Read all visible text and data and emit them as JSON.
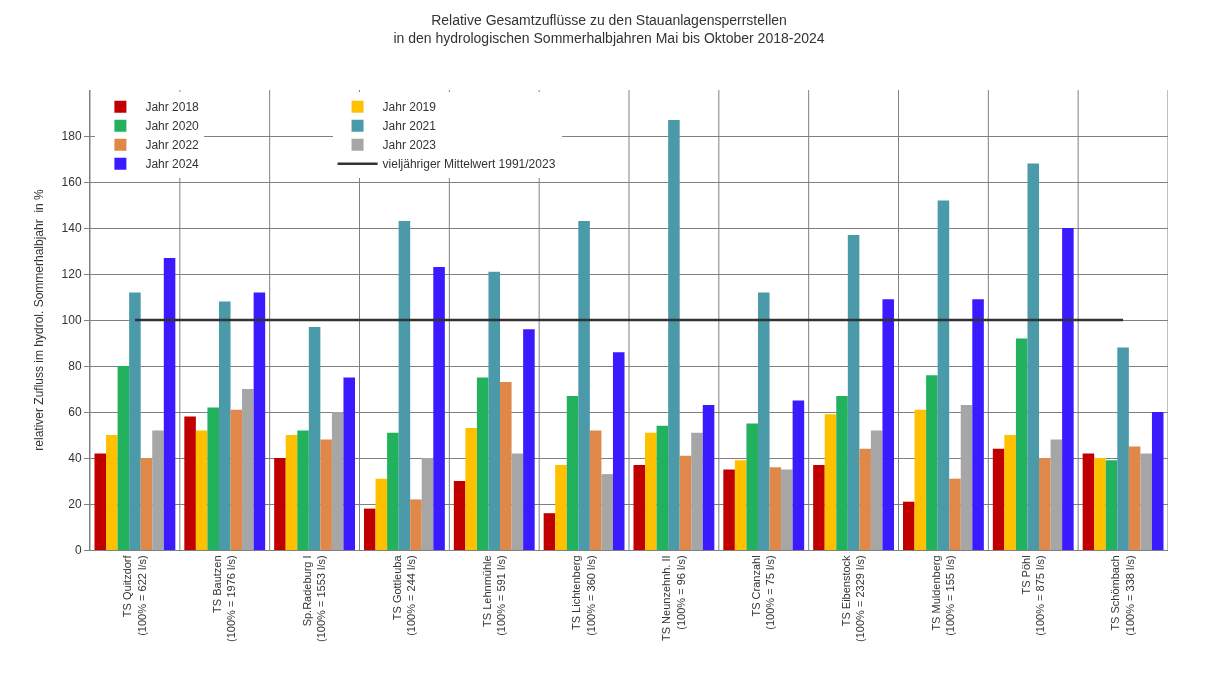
{
  "chart_data": {
    "type": "bar",
    "title": "Relative Gesamtzuflüsse zu den Stauanlagensperrstellen\nin den hydrologischen Sommerhalbjahren Mai bis Oktober 2018-2024",
    "ylabel": "relativer Zufluss im hydrol. Sommerhalbjahr  in %",
    "categories": [
      "TS Quitzdorf\n(100% = 622 l/s)",
      "TS Bautzen\n(100% = 1976 l/s)",
      "Sp.Radeburg I\n(100% = 1553 l/s)",
      "TS Gottleuba\n(100% = 244 l/s)",
      "TS Lehnmühle\n(100% = 591 l/s)",
      "TS Lichtenberg\n(100% = 360 l/s)",
      "TS Neunzehnh. II\n(100% = 96 l/s)",
      "TS Cranzahl\n(100% = 75 l/s)",
      "TS Eibenstock\n(100% = 2329 l/s)",
      "TS Muldenberg\n(100% = 155 l/s)",
      "TS Pöhl\n(100% = 875 l/s)",
      "TS Schömbach\n(100% = 338 l/s)"
    ],
    "series": [
      {
        "name": "Jahr 2018",
        "color": "#c00000",
        "values": [
          42,
          58,
          40,
          18,
          30,
          16,
          37,
          35,
          37,
          21,
          44,
          42
        ]
      },
      {
        "name": "Jahr 2019",
        "color": "#ffc000",
        "values": [
          50,
          52,
          50,
          31,
          53,
          37,
          51,
          39,
          59,
          61,
          50,
          40
        ]
      },
      {
        "name": "Jahr 2020",
        "color": "#22b25e",
        "values": [
          80,
          62,
          52,
          51,
          75,
          67,
          54,
          55,
          67,
          76,
          92,
          39
        ]
      },
      {
        "name": "Jahr 2021",
        "color": "#4a9aaa",
        "values": [
          112,
          108,
          97,
          143,
          121,
          143,
          187,
          112,
          137,
          152,
          168,
          88
        ]
      },
      {
        "name": "Jahr 2022",
        "color": "#e0884a",
        "values": [
          40,
          61,
          48,
          22,
          73,
          52,
          41,
          36,
          44,
          31,
          40,
          45
        ]
      },
      {
        "name": "Jahr 2023",
        "color": "#a6a6a6",
        "values": [
          52,
          70,
          60,
          40,
          42,
          33,
          51,
          35,
          52,
          63,
          48,
          42
        ]
      },
      {
        "name": "Jahr 2024",
        "color": "#3a1bff",
        "values": [
          127,
          112,
          75,
          123,
          96,
          86,
          63,
          65,
          109,
          109,
          140,
          60
        ]
      },
      {
        "name": "vieljähriger Mittelwert 1991/2023",
        "color": "#333333",
        "type": "line",
        "marker": "none",
        "values": [
          100,
          100,
          100,
          100,
          100,
          100,
          100,
          100,
          100,
          100,
          100,
          100
        ]
      }
    ],
    "ylim": [
      0,
      200
    ],
    "yticks": [
      0,
      20,
      40,
      60,
      80,
      100,
      120,
      140,
      160,
      180
    ],
    "grid": true,
    "legend": "top left"
  }
}
